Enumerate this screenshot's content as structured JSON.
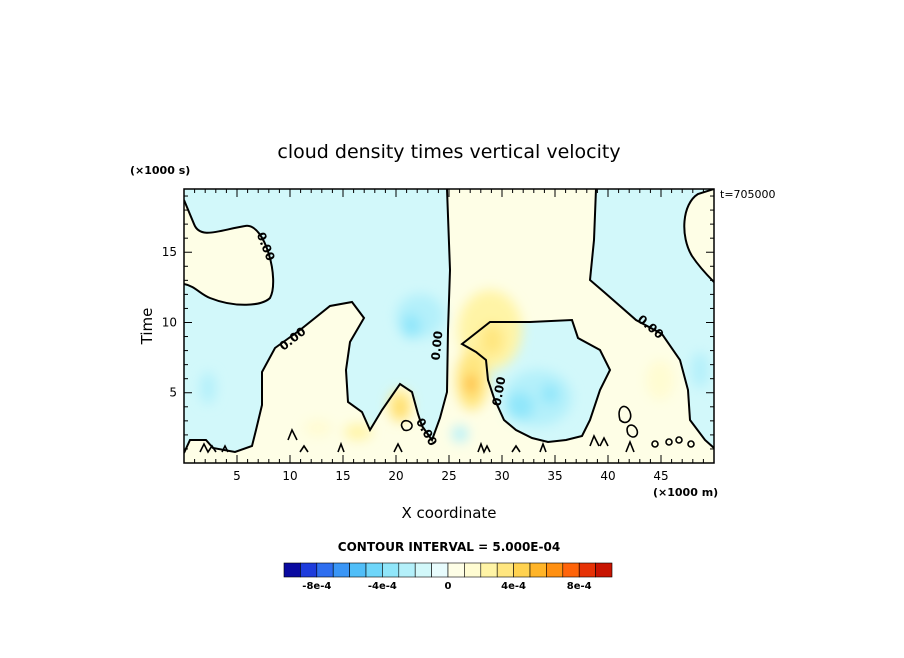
{
  "chart_data": {
    "type": "heatmap",
    "title": "cloud density times vertical velocity",
    "xlabel": "X coordinate",
    "ylabel": "Time",
    "x_unit": "(×1000 m)",
    "y_unit": "(×1000 s)",
    "time_label": "t=705000",
    "x_range": [
      0,
      50
    ],
    "y_range": [
      0,
      19.5
    ],
    "x_ticks": [
      5,
      10,
      15,
      20,
      25,
      30,
      35,
      40,
      45
    ],
    "y_ticks": [
      5,
      10,
      15
    ],
    "contour_label": "0.00",
    "contour_interval_text": "CONTOUR INTERVAL = 5.000E-04",
    "colorbar": {
      "levels": [
        -0.001,
        -0.0009,
        -0.0008,
        -0.0007,
        -0.0006,
        -0.0005,
        -0.0004,
        -0.0003,
        -0.0002,
        -0.0001,
        0,
        0.0001,
        0.0002,
        0.0003,
        0.0004,
        0.0005,
        0.0006,
        0.0007,
        0.0008,
        0.0009,
        0.001
      ],
      "tick_labels": [
        "-8e-4",
        "-4e-4",
        "0",
        "4e-4",
        "8e-4"
      ],
      "colors": [
        "#0a0aa0",
        "#1e3cdc",
        "#2e6ef0",
        "#3a96f6",
        "#50bef8",
        "#6ed6fa",
        "#90e6fa",
        "#b4f0fa",
        "#d2f8fa",
        "#e8fcfd",
        "#fefee6",
        "#fffcd2",
        "#fff4a6",
        "#ffe680",
        "#ffd250",
        "#ffb428",
        "#ff9012",
        "#ff640a",
        "#e63206",
        "#c81402"
      ]
    },
    "regions": {
      "positive_blobs": [
        {
          "x": 28.5,
          "y": 9.0,
          "value": 0.0004
        },
        {
          "x": 27.0,
          "y": 6.5,
          "value": 0.0005
        },
        {
          "x": 20.5,
          "y": 4.0,
          "value": 0.0004
        },
        {
          "x": 17.5,
          "y": 2.2,
          "value": 0.0003
        },
        {
          "x": 44.5,
          "y": 6.0,
          "value": 0.0002
        }
      ],
      "negative_blobs": [
        {
          "x": 22.5,
          "y": 10.5,
          "value": -0.0002
        },
        {
          "x": 33.0,
          "y": 5.0,
          "value": -0.0003
        },
        {
          "x": 2.5,
          "y": 5.5,
          "value": -0.0001
        },
        {
          "x": 48.5,
          "y": 7.5,
          "value": -0.0001
        }
      ]
    }
  }
}
